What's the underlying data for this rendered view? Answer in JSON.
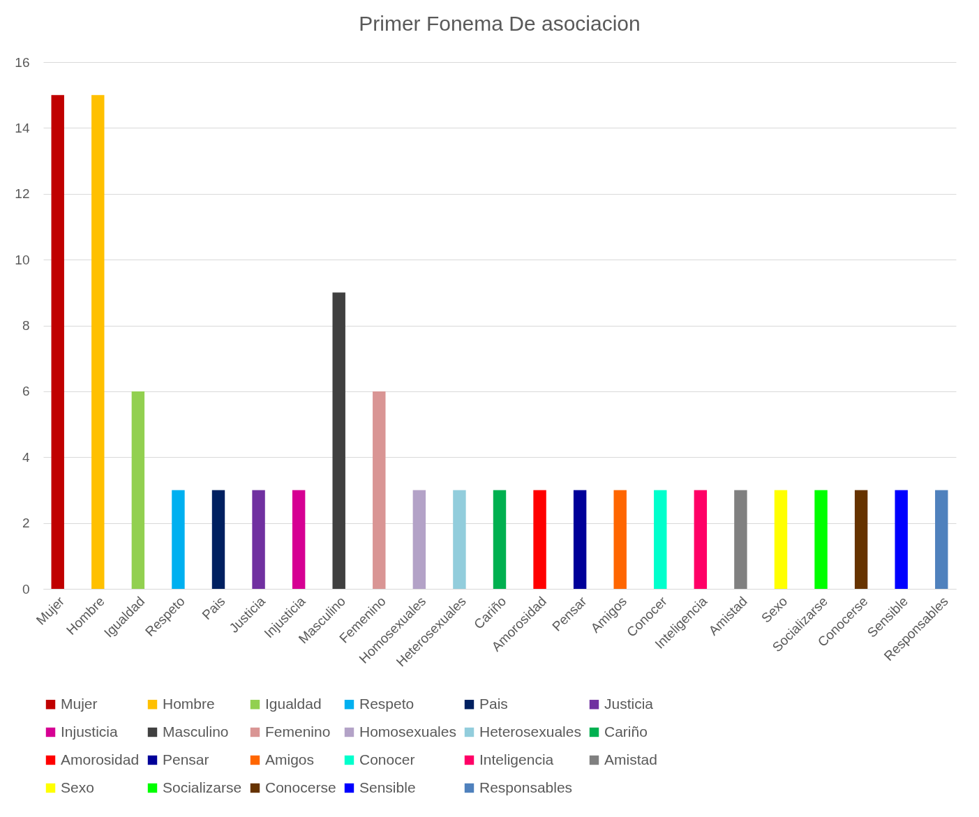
{
  "chart_data": {
    "type": "bar",
    "title": "Primer Fonema De asociacion",
    "categories": [
      "Mujer",
      "Hombre",
      "Igualdad",
      "Respeto",
      "Pais",
      "Justicia",
      "Injusticia",
      "Masculino",
      "Femenino",
      "Homosexuales",
      "Heterosexuales",
      "Cariño",
      "Amorosidad",
      "Pensar",
      "Amigos",
      "Conocer",
      "Inteligencia",
      "Amistad",
      "Sexo",
      "Socializarse",
      "Conocerse",
      "Sensible",
      "Responsables"
    ],
    "series": [
      {
        "name": "Mujer",
        "color": "#c00000",
        "values": [
          15,
          null,
          null,
          null,
          null,
          null,
          null,
          null,
          null,
          null,
          null,
          null,
          null,
          null,
          null,
          null,
          null,
          null,
          null,
          null,
          null,
          null,
          null
        ]
      },
      {
        "name": "Hombre",
        "color": "#ffc000",
        "values": [
          null,
          15,
          null,
          null,
          null,
          null,
          null,
          null,
          null,
          null,
          null,
          null,
          null,
          null,
          null,
          null,
          null,
          null,
          null,
          null,
          null,
          null,
          null
        ]
      },
      {
        "name": "Igualdad",
        "color": "#92d050",
        "values": [
          null,
          null,
          6,
          null,
          null,
          null,
          null,
          null,
          null,
          null,
          null,
          null,
          null,
          null,
          null,
          null,
          null,
          null,
          null,
          null,
          null,
          null,
          null
        ]
      },
      {
        "name": "Respeto",
        "color": "#00b0f0",
        "values": [
          null,
          null,
          null,
          3,
          null,
          null,
          null,
          null,
          null,
          null,
          null,
          null,
          null,
          null,
          null,
          null,
          null,
          null,
          null,
          null,
          null,
          null,
          null
        ]
      },
      {
        "name": "Pais",
        "color": "#002060",
        "values": [
          null,
          null,
          null,
          null,
          3,
          null,
          null,
          null,
          null,
          null,
          null,
          null,
          null,
          null,
          null,
          null,
          null,
          null,
          null,
          null,
          null,
          null,
          null
        ]
      },
      {
        "name": "Justicia",
        "color": "#7030a0",
        "values": [
          null,
          null,
          null,
          null,
          null,
          3,
          null,
          null,
          null,
          null,
          null,
          null,
          null,
          null,
          null,
          null,
          null,
          null,
          null,
          null,
          null,
          null,
          null
        ]
      },
      {
        "name": "Injusticia",
        "color": "#d60093",
        "values": [
          null,
          null,
          null,
          null,
          null,
          null,
          3,
          null,
          null,
          null,
          null,
          null,
          null,
          null,
          null,
          null,
          null,
          null,
          null,
          null,
          null,
          null,
          null
        ]
      },
      {
        "name": "Masculino",
        "color": "#404040",
        "values": [
          null,
          null,
          null,
          null,
          null,
          null,
          null,
          9,
          null,
          null,
          null,
          null,
          null,
          null,
          null,
          null,
          null,
          null,
          null,
          null,
          null,
          null,
          null
        ]
      },
      {
        "name": "Femenino",
        "color": "#d99594",
        "values": [
          null,
          null,
          null,
          null,
          null,
          null,
          null,
          null,
          6,
          null,
          null,
          null,
          null,
          null,
          null,
          null,
          null,
          null,
          null,
          null,
          null,
          null,
          null
        ]
      },
      {
        "name": "Homosexuales",
        "color": "#b3a2c7",
        "values": [
          null,
          null,
          null,
          null,
          null,
          null,
          null,
          null,
          null,
          3,
          null,
          null,
          null,
          null,
          null,
          null,
          null,
          null,
          null,
          null,
          null,
          null,
          null
        ]
      },
      {
        "name": "Heterosexuales",
        "color": "#92cddc",
        "values": [
          null,
          null,
          null,
          null,
          null,
          null,
          null,
          null,
          null,
          null,
          3,
          null,
          null,
          null,
          null,
          null,
          null,
          null,
          null,
          null,
          null,
          null,
          null
        ]
      },
      {
        "name": "Cariño",
        "color": "#00b050",
        "values": [
          null,
          null,
          null,
          null,
          null,
          null,
          null,
          null,
          null,
          null,
          null,
          3,
          null,
          null,
          null,
          null,
          null,
          null,
          null,
          null,
          null,
          null,
          null
        ]
      },
      {
        "name": "Amorosidad",
        "color": "#ff0000",
        "values": [
          null,
          null,
          null,
          null,
          null,
          null,
          null,
          null,
          null,
          null,
          null,
          null,
          3,
          null,
          null,
          null,
          null,
          null,
          null,
          null,
          null,
          null,
          null
        ]
      },
      {
        "name": "Pensar",
        "color": "#000099",
        "values": [
          null,
          null,
          null,
          null,
          null,
          null,
          null,
          null,
          null,
          null,
          null,
          null,
          null,
          3,
          null,
          null,
          null,
          null,
          null,
          null,
          null,
          null,
          null
        ]
      },
      {
        "name": "Amigos",
        "color": "#ff6600",
        "values": [
          null,
          null,
          null,
          null,
          null,
          null,
          null,
          null,
          null,
          null,
          null,
          null,
          null,
          null,
          3,
          null,
          null,
          null,
          null,
          null,
          null,
          null,
          null
        ]
      },
      {
        "name": "Conocer",
        "color": "#00ffcc",
        "values": [
          null,
          null,
          null,
          null,
          null,
          null,
          null,
          null,
          null,
          null,
          null,
          null,
          null,
          null,
          null,
          3,
          null,
          null,
          null,
          null,
          null,
          null,
          null
        ]
      },
      {
        "name": "Inteligencia",
        "color": "#ff0066",
        "values": [
          null,
          null,
          null,
          null,
          null,
          null,
          null,
          null,
          null,
          null,
          null,
          null,
          null,
          null,
          null,
          null,
          3,
          null,
          null,
          null,
          null,
          null,
          null
        ]
      },
      {
        "name": "Amistad",
        "color": "#808080",
        "values": [
          null,
          null,
          null,
          null,
          null,
          null,
          null,
          null,
          null,
          null,
          null,
          null,
          null,
          null,
          null,
          null,
          null,
          3,
          null,
          null,
          null,
          null,
          null
        ]
      },
      {
        "name": "Sexo",
        "color": "#ffff00",
        "values": [
          null,
          null,
          null,
          null,
          null,
          null,
          null,
          null,
          null,
          null,
          null,
          null,
          null,
          null,
          null,
          null,
          null,
          null,
          3,
          null,
          null,
          null,
          null
        ]
      },
      {
        "name": "Socializarse",
        "color": "#00ff00",
        "values": [
          null,
          null,
          null,
          null,
          null,
          null,
          null,
          null,
          null,
          null,
          null,
          null,
          null,
          null,
          null,
          null,
          null,
          null,
          null,
          3,
          null,
          null,
          null
        ]
      },
      {
        "name": "Conocerse",
        "color": "#663300",
        "values": [
          null,
          null,
          null,
          null,
          null,
          null,
          null,
          null,
          null,
          null,
          null,
          null,
          null,
          null,
          null,
          null,
          null,
          null,
          null,
          null,
          3,
          null,
          null
        ]
      },
      {
        "name": "Sensible",
        "color": "#0000ff",
        "values": [
          null,
          null,
          null,
          null,
          null,
          null,
          null,
          null,
          null,
          null,
          null,
          null,
          null,
          null,
          null,
          null,
          null,
          null,
          null,
          null,
          null,
          3,
          null
        ]
      },
      {
        "name": "Responsables",
        "color": "#4f81bd",
        "values": [
          null,
          null,
          null,
          null,
          null,
          null,
          null,
          null,
          null,
          null,
          null,
          null,
          null,
          null,
          null,
          null,
          null,
          null,
          null,
          null,
          null,
          null,
          3
        ]
      }
    ],
    "ylim": [
      0,
      16
    ],
    "yticks": [
      0,
      2,
      4,
      6,
      8,
      10,
      12,
      14,
      16
    ],
    "grid": "y",
    "legend": "bottom"
  }
}
